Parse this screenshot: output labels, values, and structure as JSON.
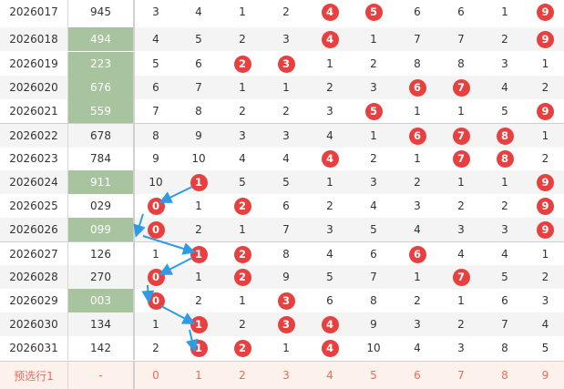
{
  "colors": {
    "ball": "#e8403f",
    "green_cell": "#a8c49e",
    "arrow": "#2e9be5",
    "footer_text": "#f06a5a",
    "footer_bg": "#fdf1ec"
  },
  "rows": [
    {
      "period": "2026017",
      "number": "945",
      "green": false,
      "cells": [
        "3",
        "4",
        "1",
        "2",
        "4",
        "5",
        "6",
        "6",
        "1",
        "9"
      ],
      "balls": [
        4,
        5,
        9
      ]
    },
    {
      "period": "2026018",
      "number": "494",
      "green": true,
      "cells": [
        "4",
        "5",
        "2",
        "3",
        "4",
        "1",
        "7",
        "7",
        "2",
        "9"
      ],
      "balls": [
        4,
        9
      ]
    },
    {
      "period": "2026019",
      "number": "223",
      "green": true,
      "cells": [
        "5",
        "6",
        "2",
        "3",
        "1",
        "2",
        "8",
        "8",
        "3",
        "1"
      ],
      "balls": [
        2,
        3
      ]
    },
    {
      "period": "2026020",
      "number": "676",
      "green": true,
      "cells": [
        "6",
        "7",
        "1",
        "1",
        "2",
        "3",
        "6",
        "7",
        "4",
        "2"
      ],
      "balls": [
        6,
        7
      ]
    },
    {
      "period": "2026021",
      "number": "559",
      "green": true,
      "cells": [
        "7",
        "8",
        "2",
        "2",
        "3",
        "5",
        "1",
        "1",
        "5",
        "9"
      ],
      "balls": [
        5,
        9
      ]
    },
    {
      "period": "2026022",
      "number": "678",
      "green": false,
      "cells": [
        "8",
        "9",
        "3",
        "3",
        "4",
        "1",
        "6",
        "7",
        "8",
        "1"
      ],
      "balls": [
        6,
        7,
        8
      ]
    },
    {
      "period": "2026023",
      "number": "784",
      "green": false,
      "cells": [
        "9",
        "10",
        "4",
        "4",
        "4",
        "2",
        "1",
        "7",
        "8",
        "2"
      ],
      "balls": [
        4,
        7,
        8
      ]
    },
    {
      "period": "2026024",
      "number": "911",
      "green": true,
      "cells": [
        "10",
        "1",
        "5",
        "5",
        "1",
        "3",
        "2",
        "1",
        "1",
        "9"
      ],
      "balls": [
        1,
        9
      ]
    },
    {
      "period": "2026025",
      "number": "029",
      "green": false,
      "cells": [
        "0",
        "1",
        "2",
        "6",
        "2",
        "4",
        "3",
        "2",
        "2",
        "9"
      ],
      "balls": [
        0,
        2,
        9
      ]
    },
    {
      "period": "2026026",
      "number": "099",
      "green": true,
      "cells": [
        "0",
        "2",
        "1",
        "7",
        "3",
        "5",
        "4",
        "3",
        "3",
        "9"
      ],
      "balls": [
        0,
        9
      ]
    },
    {
      "period": "2026027",
      "number": "126",
      "green": false,
      "cells": [
        "1",
        "1",
        "2",
        "8",
        "4",
        "6",
        "6",
        "4",
        "4",
        "1"
      ],
      "balls": [
        1,
        2,
        6
      ]
    },
    {
      "period": "2026028",
      "number": "270",
      "green": false,
      "cells": [
        "0",
        "1",
        "2",
        "9",
        "5",
        "7",
        "1",
        "7",
        "5",
        "2"
      ],
      "balls": [
        0,
        2,
        7
      ]
    },
    {
      "period": "2026029",
      "number": "003",
      "green": true,
      "cells": [
        "0",
        "2",
        "1",
        "3",
        "6",
        "8",
        "2",
        "1",
        "6",
        "3"
      ],
      "balls": [
        0,
        3
      ]
    },
    {
      "period": "2026030",
      "number": "134",
      "green": false,
      "cells": [
        "1",
        "1",
        "2",
        "3",
        "4",
        "9",
        "3",
        "2",
        "7",
        "4"
      ],
      "balls": [
        1,
        3,
        4
      ]
    },
    {
      "period": "2026031",
      "number": "142",
      "green": false,
      "cells": [
        "2",
        "1",
        "2",
        "1",
        "4",
        "10",
        "4",
        "3",
        "8",
        "5"
      ],
      "balls": [
        1,
        2,
        4
      ]
    }
  ],
  "footer": {
    "label": "预选行1",
    "number": "-",
    "cells": [
      "0",
      "1",
      "2",
      "3",
      "4",
      "5",
      "6",
      "7",
      "8",
      "9"
    ]
  }
}
